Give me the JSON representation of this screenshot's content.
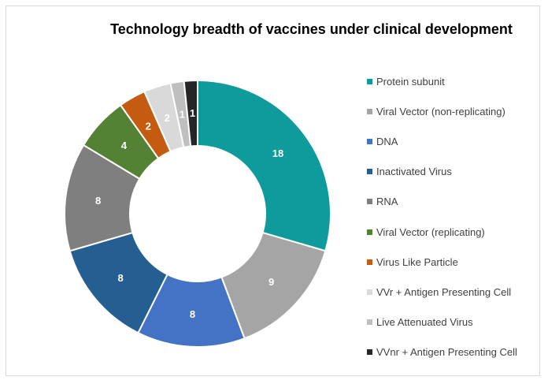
{
  "chart_data": {
    "type": "pie",
    "variant": "donut",
    "title": "Technology breadth of vaccines under clinical development",
    "legend_position": "right",
    "series": [
      {
        "name": "Protein subunit",
        "value": 18,
        "color": "#0f9b9b"
      },
      {
        "name": "Viral Vector (non-replicating)",
        "value": 9,
        "color": "#a5a5a5"
      },
      {
        "name": "DNA",
        "value": 8,
        "color": "#4472c4"
      },
      {
        "name": "Inactivated Virus",
        "value": 8,
        "color": "#255e91"
      },
      {
        "name": "RNA",
        "value": 8,
        "color": "#7f7f7f"
      },
      {
        "name": "Viral Vector (replicating)",
        "value": 4,
        "color": "#548235"
      },
      {
        "name": "Virus Like Particle",
        "value": 2,
        "color": "#c55a11"
      },
      {
        "name": "VVr + Antigen Presenting Cell",
        "value": 2,
        "color": "#d9d9d9"
      },
      {
        "name": "Live Attenuated Virus",
        "value": 1,
        "color": "#bfbfbf"
      },
      {
        "name": "VVnr + Antigen Presenting Cell",
        "value": 1,
        "color": "#262626"
      }
    ]
  }
}
